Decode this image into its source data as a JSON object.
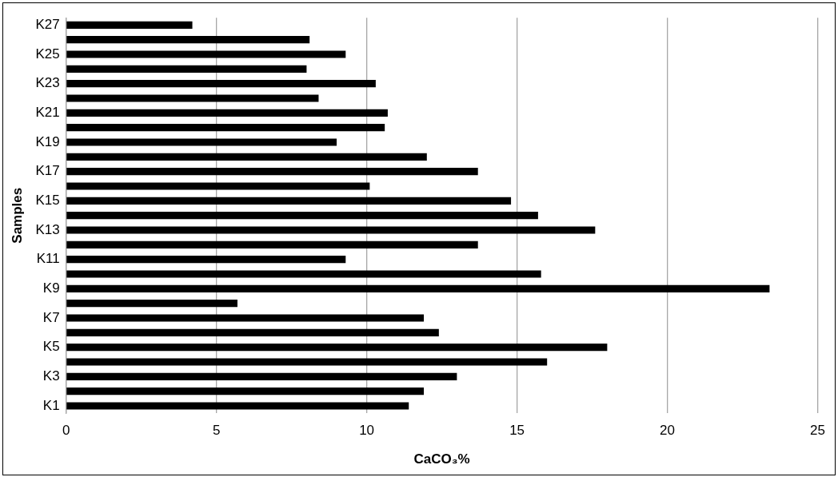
{
  "chart_data": {
    "type": "bar",
    "orientation": "horizontal",
    "xlabel": "CaCO₃%",
    "ylabel": "Samples",
    "categories": [
      "K27",
      null,
      "K25",
      null,
      "K23",
      null,
      "K21",
      null,
      "K19",
      null,
      "K17",
      null,
      "K15",
      null,
      "K13",
      null,
      "K11",
      null,
      "K9",
      null,
      "K7",
      null,
      "K5",
      null,
      "K3",
      null,
      "K1"
    ],
    "values": [
      4.2,
      8.1,
      9.3,
      8.0,
      10.3,
      8.4,
      10.7,
      10.6,
      9.0,
      12.0,
      13.7,
      10.1,
      14.8,
      15.7,
      17.6,
      13.7,
      9.3,
      15.8,
      23.4,
      5.7,
      11.9,
      12.4,
      18.0,
      16.0,
      13.0,
      11.9,
      11.4
    ],
    "color": "#000000",
    "xlim": [
      0,
      25
    ],
    "xticks": [
      0,
      5,
      10,
      15,
      20,
      25
    ],
    "grid": "x",
    "legend": false
  }
}
